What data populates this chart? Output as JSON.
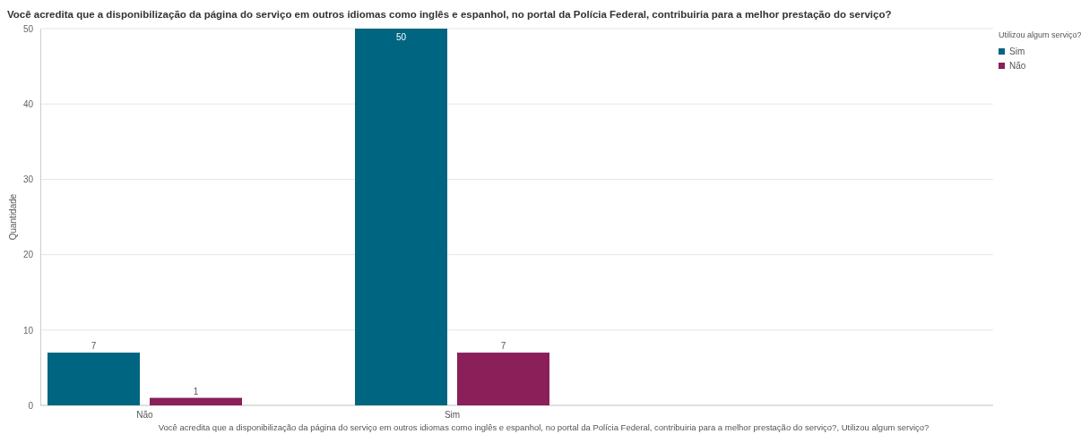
{
  "chart_data": {
    "type": "bar",
    "title": "Você acredita que a disponibilização da página do serviço em outros idiomas como inglês e espanhol, no portal da Polícia Federal, contribuiria para a melhor prestação do serviço?",
    "xlabel": "Você acredita que a disponibilização da página do serviço em outros idiomas como inglês e espanhol, no portal da Polícia Federal, contribuiria para a melhor prestação do serviço?, Utilizou algum serviço?",
    "ylabel": "Quantidade",
    "legend_title": "Utilizou algum serviço?",
    "categories": [
      "Não",
      "Sim"
    ],
    "series": [
      {
        "name": "Sim",
        "color": "#006580",
        "values": [
          7,
          50
        ]
      },
      {
        "name": "Não",
        "color": "#8a1f5a",
        "values": [
          1,
          7
        ]
      }
    ],
    "ylim": [
      0,
      50
    ],
    "yticks": [
      0,
      10,
      20,
      30,
      40,
      50
    ],
    "grid": "y",
    "legend": "top right",
    "data_labels": true
  }
}
